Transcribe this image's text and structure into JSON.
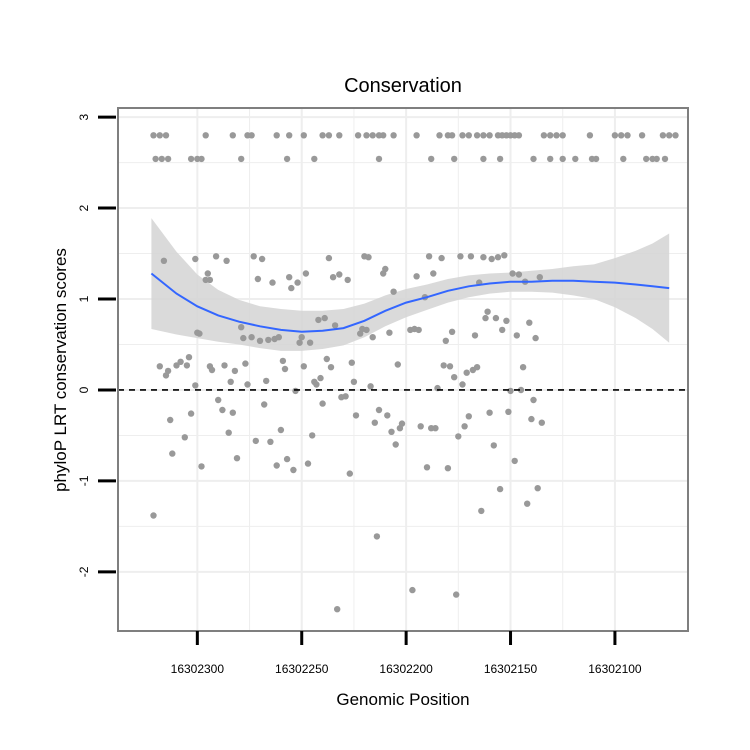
{
  "chart_data": {
    "type": "scatter",
    "title": "Conservation",
    "xlabel": "Genomic Position",
    "ylabel": "phyloP LRT conservation scores",
    "x_reversed": true,
    "xlim": [
      16302065,
      16302338
    ],
    "ylim": [
      -2.65,
      3.1
    ],
    "xticks": [
      16302300,
      16302250,
      16302200,
      16302150,
      16302100
    ],
    "xtick_labels": [
      "16302300",
      "16302250",
      "16302200",
      "16302150",
      "16302100"
    ],
    "yticks": [
      -2,
      -1,
      0,
      1,
      2,
      3
    ],
    "ytick_labels": [
      "-2",
      "-1",
      "0",
      "1",
      "2",
      "3"
    ],
    "hline": 0,
    "colors": {
      "points": "#999999",
      "smooth": "#3366ff",
      "band": "#d3d3d3",
      "grid": "#eeeeee",
      "panel_border": "#7f7f7f",
      "hline": "#000000"
    },
    "smooth": {
      "x": [
        16302322,
        16302310,
        16302300,
        16302290,
        16302280,
        16302270,
        16302260,
        16302250,
        16302240,
        16302230,
        16302220,
        16302210,
        16302200,
        16302190,
        16302180,
        16302170,
        16302160,
        16302150,
        16302140,
        16302130,
        16302120,
        16302110,
        16302100,
        16302090,
        16302082,
        16302074
      ],
      "y": [
        1.28,
        1.06,
        0.92,
        0.82,
        0.75,
        0.7,
        0.66,
        0.64,
        0.65,
        0.68,
        0.76,
        0.87,
        0.96,
        1.02,
        1.09,
        1.14,
        1.17,
        1.19,
        1.19,
        1.2,
        1.2,
        1.19,
        1.18,
        1.16,
        1.14,
        1.12
      ],
      "lower": [
        0.67,
        0.61,
        0.57,
        0.53,
        0.5,
        0.46,
        0.43,
        0.43,
        0.45,
        0.49,
        0.58,
        0.7,
        0.8,
        0.88,
        0.96,
        1.02,
        1.06,
        1.08,
        1.08,
        1.07,
        1.04,
        1.0,
        0.91,
        0.79,
        0.67,
        0.52
      ],
      "upper": [
        1.89,
        1.52,
        1.27,
        1.1,
        0.99,
        0.92,
        0.89,
        0.87,
        0.87,
        0.89,
        0.95,
        1.04,
        1.11,
        1.16,
        1.22,
        1.26,
        1.28,
        1.29,
        1.31,
        1.33,
        1.36,
        1.38,
        1.45,
        1.53,
        1.61,
        1.72
      ]
    },
    "points": [
      {
        "x": 16302321,
        "y": 2.8
      },
      {
        "x": 16302318,
        "y": 2.8
      },
      {
        "x": 16302315,
        "y": 2.8
      },
      {
        "x": 16302320,
        "y": 2.54
      },
      {
        "x": 16302317,
        "y": 2.54
      },
      {
        "x": 16302314,
        "y": 2.54
      },
      {
        "x": 16302303,
        "y": 2.54
      },
      {
        "x": 16302300,
        "y": 2.54
      },
      {
        "x": 16302298,
        "y": 2.54
      },
      {
        "x": 16302296,
        "y": 2.8
      },
      {
        "x": 16302283,
        "y": 2.8
      },
      {
        "x": 16302276,
        "y": 2.8
      },
      {
        "x": 16302274,
        "y": 2.8
      },
      {
        "x": 16302279,
        "y": 2.54
      },
      {
        "x": 16302257,
        "y": 2.54
      },
      {
        "x": 16302262,
        "y": 2.8
      },
      {
        "x": 16302256,
        "y": 2.8
      },
      {
        "x": 16302249,
        "y": 2.8
      },
      {
        "x": 16302244,
        "y": 2.54
      },
      {
        "x": 16302240,
        "y": 2.8
      },
      {
        "x": 16302237,
        "y": 2.8
      },
      {
        "x": 16302232,
        "y": 2.8
      },
      {
        "x": 16302223,
        "y": 2.8
      },
      {
        "x": 16302219,
        "y": 2.8
      },
      {
        "x": 16302216,
        "y": 2.8
      },
      {
        "x": 16302213,
        "y": 2.8
      },
      {
        "x": 16302211,
        "y": 2.8
      },
      {
        "x": 16302213,
        "y": 2.54
      },
      {
        "x": 16302206,
        "y": 2.8
      },
      {
        "x": 16302195,
        "y": 2.8
      },
      {
        "x": 16302188,
        "y": 2.54
      },
      {
        "x": 16302184,
        "y": 2.8
      },
      {
        "x": 16302180,
        "y": 2.8
      },
      {
        "x": 16302178,
        "y": 2.8
      },
      {
        "x": 16302177,
        "y": 2.54
      },
      {
        "x": 16302173,
        "y": 2.8
      },
      {
        "x": 16302170,
        "y": 2.8
      },
      {
        "x": 16302166,
        "y": 2.8
      },
      {
        "x": 16302163,
        "y": 2.8
      },
      {
        "x": 16302160,
        "y": 2.8
      },
      {
        "x": 16302163,
        "y": 2.54
      },
      {
        "x": 16302156,
        "y": 2.8
      },
      {
        "x": 16302154,
        "y": 2.8
      },
      {
        "x": 16302152,
        "y": 2.8
      },
      {
        "x": 16302150,
        "y": 2.8
      },
      {
        "x": 16302148,
        "y": 2.8
      },
      {
        "x": 16302146,
        "y": 2.8
      },
      {
        "x": 16302155,
        "y": 2.54
      },
      {
        "x": 16302139,
        "y": 2.54
      },
      {
        "x": 16302134,
        "y": 2.8
      },
      {
        "x": 16302131,
        "y": 2.8
      },
      {
        "x": 16302128,
        "y": 2.8
      },
      {
        "x": 16302125,
        "y": 2.8
      },
      {
        "x": 16302131,
        "y": 2.54
      },
      {
        "x": 16302125,
        "y": 2.54
      },
      {
        "x": 16302112,
        "y": 2.8
      },
      {
        "x": 16302119,
        "y": 2.54
      },
      {
        "x": 16302111,
        "y": 2.54
      },
      {
        "x": 16302109,
        "y": 2.54
      },
      {
        "x": 16302100,
        "y": 2.8
      },
      {
        "x": 16302097,
        "y": 2.8
      },
      {
        "x": 16302094,
        "y": 2.8
      },
      {
        "x": 16302087,
        "y": 2.8
      },
      {
        "x": 16302096,
        "y": 2.54
      },
      {
        "x": 16302085,
        "y": 2.54
      },
      {
        "x": 16302082,
        "y": 2.54
      },
      {
        "x": 16302080,
        "y": 2.54
      },
      {
        "x": 16302076,
        "y": 2.54
      },
      {
        "x": 16302077,
        "y": 2.8
      },
      {
        "x": 16302074,
        "y": 2.8
      },
      {
        "x": 16302071,
        "y": 2.8
      },
      {
        "x": 16302321,
        "y": -1.38
      },
      {
        "x": 16302318,
        "y": 0.26
      },
      {
        "x": 16302316,
        "y": 1.42
      },
      {
        "x": 16302315,
        "y": 0.16
      },
      {
        "x": 16302314,
        "y": 0.21
      },
      {
        "x": 16302313,
        "y": -0.33
      },
      {
        "x": 16302312,
        "y": -0.7
      },
      {
        "x": 16302310,
        "y": 0.27
      },
      {
        "x": 16302308,
        "y": 0.31
      },
      {
        "x": 16302306,
        "y": -0.52
      },
      {
        "x": 16302305,
        "y": 0.27
      },
      {
        "x": 16302304,
        "y": 0.36
      },
      {
        "x": 16302303,
        "y": -0.26
      },
      {
        "x": 16302301,
        "y": 1.44
      },
      {
        "x": 16302301,
        "y": 0.05
      },
      {
        "x": 16302300,
        "y": 0.63
      },
      {
        "x": 16302299,
        "y": 0.62
      },
      {
        "x": 16302298,
        "y": -0.84
      },
      {
        "x": 16302296,
        "y": 1.21
      },
      {
        "x": 16302295,
        "y": 1.28
      },
      {
        "x": 16302294,
        "y": 1.21
      },
      {
        "x": 16302294,
        "y": 0.26
      },
      {
        "x": 16302293,
        "y": 0.22
      },
      {
        "x": 16302291,
        "y": 1.47
      },
      {
        "x": 16302290,
        "y": -0.11
      },
      {
        "x": 16302288,
        "y": -0.22
      },
      {
        "x": 16302287,
        "y": 0.27
      },
      {
        "x": 16302286,
        "y": 1.42
      },
      {
        "x": 16302285,
        "y": -0.47
      },
      {
        "x": 16302284,
        "y": 0.09
      },
      {
        "x": 16302283,
        "y": -0.25
      },
      {
        "x": 16302282,
        "y": 0.21
      },
      {
        "x": 16302281,
        "y": -0.75
      },
      {
        "x": 16302279,
        "y": 0.69
      },
      {
        "x": 16302278,
        "y": 0.57
      },
      {
        "x": 16302277,
        "y": 0.29
      },
      {
        "x": 16302276,
        "y": 0.06
      },
      {
        "x": 16302274,
        "y": 0.58
      },
      {
        "x": 16302273,
        "y": 1.47
      },
      {
        "x": 16302272,
        "y": -0.56
      },
      {
        "x": 16302271,
        "y": 1.22
      },
      {
        "x": 16302270,
        "y": 0.54
      },
      {
        "x": 16302269,
        "y": 1.44
      },
      {
        "x": 16302268,
        "y": -0.16
      },
      {
        "x": 16302267,
        "y": 0.1
      },
      {
        "x": 16302266,
        "y": 0.55
      },
      {
        "x": 16302265,
        "y": -0.57
      },
      {
        "x": 16302264,
        "y": 1.18
      },
      {
        "x": 16302263,
        "y": 0.56
      },
      {
        "x": 16302262,
        "y": -0.83
      },
      {
        "x": 16302261,
        "y": 0.58
      },
      {
        "x": 16302260,
        "y": -0.44
      },
      {
        "x": 16302259,
        "y": 0.32
      },
      {
        "x": 16302258,
        "y": 0.23
      },
      {
        "x": 16302257,
        "y": -0.76
      },
      {
        "x": 16302256,
        "y": 1.24
      },
      {
        "x": 16302255,
        "y": 1.12
      },
      {
        "x": 16302254,
        "y": -0.88
      },
      {
        "x": 16302253,
        "y": -0.01
      },
      {
        "x": 16302252,
        "y": 1.18
      },
      {
        "x": 16302251,
        "y": 0.52
      },
      {
        "x": 16302250,
        "y": 0.58
      },
      {
        "x": 16302249,
        "y": 0.26
      },
      {
        "x": 16302248,
        "y": 1.28
      },
      {
        "x": 16302247,
        "y": -0.81
      },
      {
        "x": 16302246,
        "y": 0.52
      },
      {
        "x": 16302245,
        "y": -0.5
      },
      {
        "x": 16302244,
        "y": 0.09
      },
      {
        "x": 16302243,
        "y": 0.06
      },
      {
        "x": 16302242,
        "y": 0.77
      },
      {
        "x": 16302241,
        "y": 0.13
      },
      {
        "x": 16302240,
        "y": -0.15
      },
      {
        "x": 16302239,
        "y": 0.79
      },
      {
        "x": 16302238,
        "y": 0.34
      },
      {
        "x": 16302237,
        "y": 1.45
      },
      {
        "x": 16302236,
        "y": 0.25
      },
      {
        "x": 16302235,
        "y": 1.24
      },
      {
        "x": 16302234,
        "y": 0.71
      },
      {
        "x": 16302233,
        "y": -2.41
      },
      {
        "x": 16302232,
        "y": 1.27
      },
      {
        "x": 16302231,
        "y": -0.08
      },
      {
        "x": 16302229,
        "y": -0.07
      },
      {
        "x": 16302228,
        "y": 1.21
      },
      {
        "x": 16302227,
        "y": -0.92
      },
      {
        "x": 16302226,
        "y": 0.3
      },
      {
        "x": 16302225,
        "y": 0.09
      },
      {
        "x": 16302224,
        "y": -0.28
      },
      {
        "x": 16302222,
        "y": 0.62
      },
      {
        "x": 16302221,
        "y": 0.67
      },
      {
        "x": 16302220,
        "y": 1.47
      },
      {
        "x": 16302219,
        "y": 0.66
      },
      {
        "x": 16302218,
        "y": 1.46
      },
      {
        "x": 16302217,
        "y": 0.04
      },
      {
        "x": 16302216,
        "y": 0.58
      },
      {
        "x": 16302215,
        "y": -0.36
      },
      {
        "x": 16302214,
        "y": -1.61
      },
      {
        "x": 16302213,
        "y": -0.22
      },
      {
        "x": 16302211,
        "y": 1.28
      },
      {
        "x": 16302210,
        "y": 1.33
      },
      {
        "x": 16302209,
        "y": -0.28
      },
      {
        "x": 16302208,
        "y": 0.63
      },
      {
        "x": 16302207,
        "y": -0.46
      },
      {
        "x": 16302206,
        "y": 1.08
      },
      {
        "x": 16302205,
        "y": -0.6
      },
      {
        "x": 16302204,
        "y": 0.28
      },
      {
        "x": 16302203,
        "y": -0.42
      },
      {
        "x": 16302202,
        "y": -0.37
      },
      {
        "x": 16302198,
        "y": 0.66
      },
      {
        "x": 16302197,
        "y": -2.2
      },
      {
        "x": 16302196,
        "y": 0.67
      },
      {
        "x": 16302195,
        "y": 1.25
      },
      {
        "x": 16302194,
        "y": 0.66
      },
      {
        "x": 16302193,
        "y": -0.4
      },
      {
        "x": 16302191,
        "y": 1.02
      },
      {
        "x": 16302190,
        "y": -0.85
      },
      {
        "x": 16302189,
        "y": 1.47
      },
      {
        "x": 16302188,
        "y": -0.42
      },
      {
        "x": 16302187,
        "y": 1.28
      },
      {
        "x": 16302186,
        "y": -0.42
      },
      {
        "x": 16302185,
        "y": 0.02
      },
      {
        "x": 16302183,
        "y": 1.45
      },
      {
        "x": 16302182,
        "y": 0.27
      },
      {
        "x": 16302181,
        "y": 0.54
      },
      {
        "x": 16302180,
        "y": -0.86
      },
      {
        "x": 16302179,
        "y": 0.26
      },
      {
        "x": 16302178,
        "y": 0.64
      },
      {
        "x": 16302177,
        "y": 0.14
      },
      {
        "x": 16302176,
        "y": -2.25
      },
      {
        "x": 16302175,
        "y": -0.51
      },
      {
        "x": 16302174,
        "y": 1.47
      },
      {
        "x": 16302173,
        "y": 0.06
      },
      {
        "x": 16302172,
        "y": -0.4
      },
      {
        "x": 16302171,
        "y": 0.19
      },
      {
        "x": 16302170,
        "y": -0.29
      },
      {
        "x": 16302169,
        "y": 1.47
      },
      {
        "x": 16302168,
        "y": 0.22
      },
      {
        "x": 16302167,
        "y": 0.6
      },
      {
        "x": 16302166,
        "y": 0.25
      },
      {
        "x": 16302165,
        "y": 1.18
      },
      {
        "x": 16302164,
        "y": -1.33
      },
      {
        "x": 16302163,
        "y": 1.46
      },
      {
        "x": 16302162,
        "y": 0.79
      },
      {
        "x": 16302161,
        "y": 0.86
      },
      {
        "x": 16302160,
        "y": -0.25
      },
      {
        "x": 16302159,
        "y": 1.44
      },
      {
        "x": 16302158,
        "y": -0.61
      },
      {
        "x": 16302157,
        "y": 0.79
      },
      {
        "x": 16302156,
        "y": 1.46
      },
      {
        "x": 16302155,
        "y": -1.09
      },
      {
        "x": 16302154,
        "y": 0.66
      },
      {
        "x": 16302153,
        "y": 1.48
      },
      {
        "x": 16302152,
        "y": 0.76
      },
      {
        "x": 16302151,
        "y": -0.24
      },
      {
        "x": 16302150,
        "y": -0.01
      },
      {
        "x": 16302149,
        "y": 1.28
      },
      {
        "x": 16302148,
        "y": -0.78
      },
      {
        "x": 16302147,
        "y": 0.6
      },
      {
        "x": 16302146,
        "y": 1.27
      },
      {
        "x": 16302145,
        "y": 0.0
      },
      {
        "x": 16302144,
        "y": 0.25
      },
      {
        "x": 16302143,
        "y": 1.19
      },
      {
        "x": 16302142,
        "y": -1.25
      },
      {
        "x": 16302141,
        "y": 0.74
      },
      {
        "x": 16302140,
        "y": -0.32
      },
      {
        "x": 16302139,
        "y": -0.11
      },
      {
        "x": 16302138,
        "y": 0.57
      },
      {
        "x": 16302137,
        "y": -1.08
      },
      {
        "x": 16302136,
        "y": 1.24
      },
      {
        "x": 16302135,
        "y": -0.36
      }
    ]
  }
}
